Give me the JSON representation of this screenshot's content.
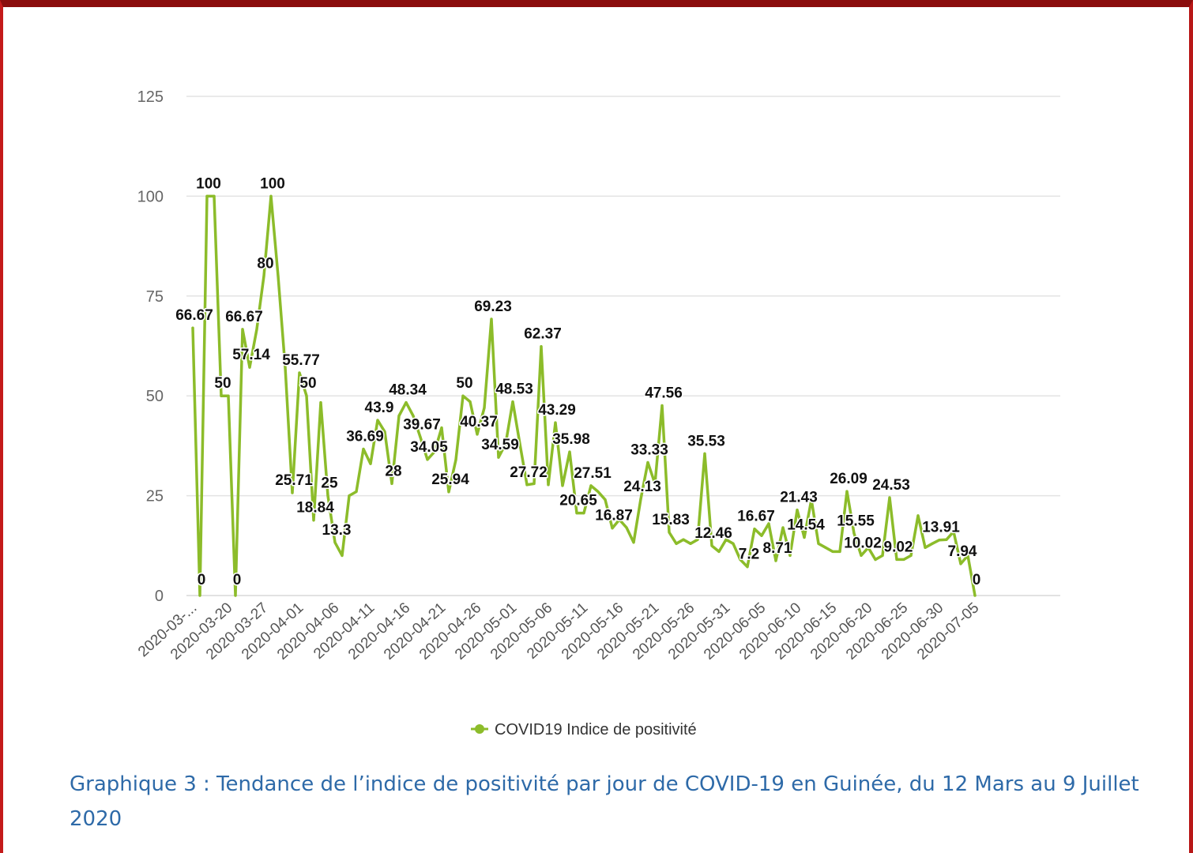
{
  "caption": "Graphique 3 : Tendance de l’indice de positivité par jour de COVID-19 en Guinée, du 12 Mars au 9 Juillet 2020",
  "colors": {
    "series": "#8cbc2a",
    "grid": "#e3e3e3",
    "frame": "#a01010",
    "caption": "#2e6aa8"
  },
  "chart_data": {
    "type": "line",
    "title": "",
    "xlabel": "",
    "ylabel": "",
    "ylim": [
      0,
      125
    ],
    "yticks": [
      0,
      25,
      50,
      75,
      100,
      125
    ],
    "grid": true,
    "legend_position": "bottom",
    "x_tick_labels": [
      {
        "index": 0,
        "label": "2020-03-..."
      },
      {
        "index": 5,
        "label": "2020-03-20"
      },
      {
        "index": 10,
        "label": "2020-03-27"
      },
      {
        "index": 15,
        "label": "2020-04-01"
      },
      {
        "index": 20,
        "label": "2020-04-06"
      },
      {
        "index": 25,
        "label": "2020-04-11"
      },
      {
        "index": 30,
        "label": "2020-04-16"
      },
      {
        "index": 35,
        "label": "2020-04-21"
      },
      {
        "index": 40,
        "label": "2020-04-26"
      },
      {
        "index": 45,
        "label": "2020-05-01"
      },
      {
        "index": 50,
        "label": "2020-05-06"
      },
      {
        "index": 55,
        "label": "2020-05-11"
      },
      {
        "index": 60,
        "label": "2020-05-16"
      },
      {
        "index": 65,
        "label": "2020-05-21"
      },
      {
        "index": 70,
        "label": "2020-05-26"
      },
      {
        "index": 75,
        "label": "2020-05-31"
      },
      {
        "index": 80,
        "label": "2020-06-05"
      },
      {
        "index": 85,
        "label": "2020-06-10"
      },
      {
        "index": 90,
        "label": "2020-06-15"
      },
      {
        "index": 95,
        "label": "2020-06-20"
      },
      {
        "index": 100,
        "label": "2020-06-25"
      },
      {
        "index": 105,
        "label": "2020-06-30"
      },
      {
        "index": 110,
        "label": "2020-07-05"
      }
    ],
    "series": [
      {
        "name": "COVID19 Indice de positivité",
        "values": [
          67,
          0,
          100,
          100,
          50,
          50,
          0,
          66.67,
          57.14,
          66.67,
          80,
          100,
          80,
          57.14,
          25.71,
          55.77,
          50,
          18.84,
          48.34,
          25,
          13.3,
          10,
          25,
          26,
          36.69,
          33,
          43.9,
          41,
          28,
          45,
          48.34,
          45,
          39.67,
          34.05,
          36,
          42,
          25.94,
          34,
          50,
          48.53,
          40.37,
          47,
          69.23,
          34.59,
          38,
          48.53,
          38,
          27.72,
          28,
          62.37,
          27.72,
          43.29,
          27.51,
          35.98,
          20.65,
          20.65,
          27.51,
          26,
          24,
          16.87,
          19,
          17,
          13.3,
          24.13,
          33.33,
          28,
          47.56,
          15.83,
          13,
          14,
          13,
          14,
          35.53,
          12.46,
          11,
          14,
          13,
          9,
          7.2,
          16.67,
          15,
          18,
          8.71,
          17,
          10,
          21.43,
          14.54,
          24,
          13,
          12,
          11,
          11,
          26.09,
          15.55,
          10.02,
          12,
          9,
          10,
          24.53,
          9.02,
          9.02,
          10,
          20,
          12,
          13,
          13.91,
          14,
          16,
          7.94,
          10,
          0
        ],
        "labels": [
          {
            "index": 0,
            "text": "66.67"
          },
          {
            "index": 1,
            "text": "0"
          },
          {
            "index": 2,
            "text": "100"
          },
          {
            "index": 4,
            "text": "50"
          },
          {
            "index": 6,
            "text": "0"
          },
          {
            "index": 7,
            "text": "66.67"
          },
          {
            "index": 8,
            "text": "57.14"
          },
          {
            "index": 10,
            "text": "80"
          },
          {
            "index": 11,
            "text": "100"
          },
          {
            "index": 14,
            "text": "25.71"
          },
          {
            "index": 15,
            "text": "55.77"
          },
          {
            "index": 16,
            "text": "50"
          },
          {
            "index": 17,
            "text": "18.84"
          },
          {
            "index": 19,
            "text": "25"
          },
          {
            "index": 20,
            "text": "13.3"
          },
          {
            "index": 24,
            "text": "36.69"
          },
          {
            "index": 26,
            "text": "43.9"
          },
          {
            "index": 28,
            "text": "28"
          },
          {
            "index": 30,
            "text": "48.34"
          },
          {
            "index": 32,
            "text": "39.67"
          },
          {
            "index": 33,
            "text": "34.05"
          },
          {
            "index": 36,
            "text": "25.94"
          },
          {
            "index": 38,
            "text": "50"
          },
          {
            "index": 40,
            "text": "40.37"
          },
          {
            "index": 42,
            "text": "69.23"
          },
          {
            "index": 43,
            "text": "34.59"
          },
          {
            "index": 45,
            "text": "48.53"
          },
          {
            "index": 47,
            "text": "27.72"
          },
          {
            "index": 49,
            "text": "62.37"
          },
          {
            "index": 51,
            "text": "43.29"
          },
          {
            "index": 53,
            "text": "35.98"
          },
          {
            "index": 54,
            "text": "20.65"
          },
          {
            "index": 56,
            "text": "27.51"
          },
          {
            "index": 59,
            "text": "16.87"
          },
          {
            "index": 63,
            "text": "24.13"
          },
          {
            "index": 64,
            "text": "33.33"
          },
          {
            "index": 66,
            "text": "47.56"
          },
          {
            "index": 67,
            "text": "15.83"
          },
          {
            "index": 72,
            "text": "35.53"
          },
          {
            "index": 73,
            "text": "12.46"
          },
          {
            "index": 78,
            "text": "7.2"
          },
          {
            "index": 79,
            "text": "16.67"
          },
          {
            "index": 82,
            "text": "8.71"
          },
          {
            "index": 85,
            "text": "21.43"
          },
          {
            "index": 86,
            "text": "14.54"
          },
          {
            "index": 92,
            "text": "26.09"
          },
          {
            "index": 93,
            "text": "15.55"
          },
          {
            "index": 94,
            "text": "10.02"
          },
          {
            "index": 98,
            "text": "24.53"
          },
          {
            "index": 99,
            "text": "9.02"
          },
          {
            "index": 105,
            "text": "13.91"
          },
          {
            "index": 108,
            "text": "7.94"
          },
          {
            "index": 110,
            "text": "0"
          }
        ]
      }
    ]
  }
}
